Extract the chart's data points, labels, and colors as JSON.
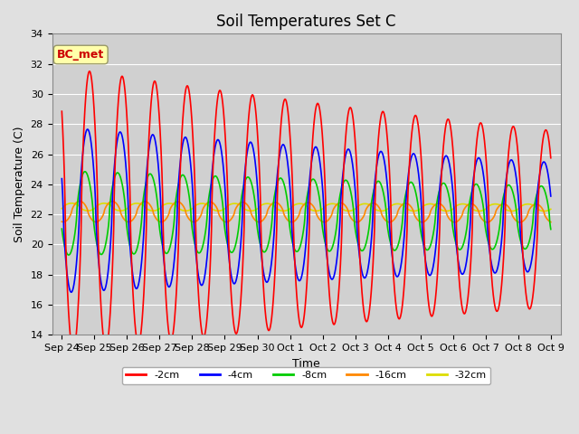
{
  "title": "Soil Temperatures Set C",
  "xlabel": "Time",
  "ylabel": "Soil Temperature (C)",
  "ylim": [
    14,
    34
  ],
  "tick_labels": [
    "Sep 24",
    "Sep 25",
    "Sep 26",
    "Sep 27",
    "Sep 28",
    "Sep 29",
    "Sep 30",
    "Oct 1",
    "Oct 2",
    "Oct 3",
    "Oct 4",
    "Oct 5",
    "Oct 6",
    "Oct 7",
    "Oct 8",
    "Oct 9"
  ],
  "tick_positions": [
    0,
    1,
    2,
    3,
    4,
    5,
    6,
    7,
    8,
    9,
    10,
    11,
    12,
    13,
    14,
    15
  ],
  "series_order": [
    "-2cm",
    "-4cm",
    "-8cm",
    "-16cm",
    "-32cm"
  ],
  "colors": {
    "-2cm": "#ff0000",
    "-4cm": "#0000ff",
    "-8cm": "#00cc00",
    "-16cm": "#ff8800",
    "-32cm": "#dddd00"
  },
  "amplitudes": {
    "-2cm": 9.5,
    "-4cm": 5.5,
    "-8cm": 2.8,
    "-16cm": 0.7,
    "-32cm": 0.25
  },
  "means": {
    "-2cm": 22.3,
    "-4cm": 22.3,
    "-8cm": 22.1,
    "-16cm": 22.2,
    "-32cm": 22.5
  },
  "phase_lags": {
    "-2cm": 0.0,
    "-4cm": 0.06,
    "-8cm": 0.14,
    "-16cm": 0.3,
    "-32cm": 0.55
  },
  "amp_decay": {
    "-2cm": 0.032,
    "-4cm": 0.028,
    "-8cm": 0.02,
    "-16cm": 0.01,
    "-32cm": 0.005
  },
  "mean_decay": {
    "-2cm": 0.04,
    "-4cm": 0.03,
    "-8cm": 0.02,
    "-16cm": 0.008,
    "-32cm": 0.003
  },
  "annotation_text": "BC_met",
  "bg_color": "#e0e0e0",
  "plot_bg_color": "#d0d0d0",
  "grid_color": "#ffffff",
  "title_fontsize": 12,
  "axis_fontsize": 8,
  "label_fontsize": 9
}
